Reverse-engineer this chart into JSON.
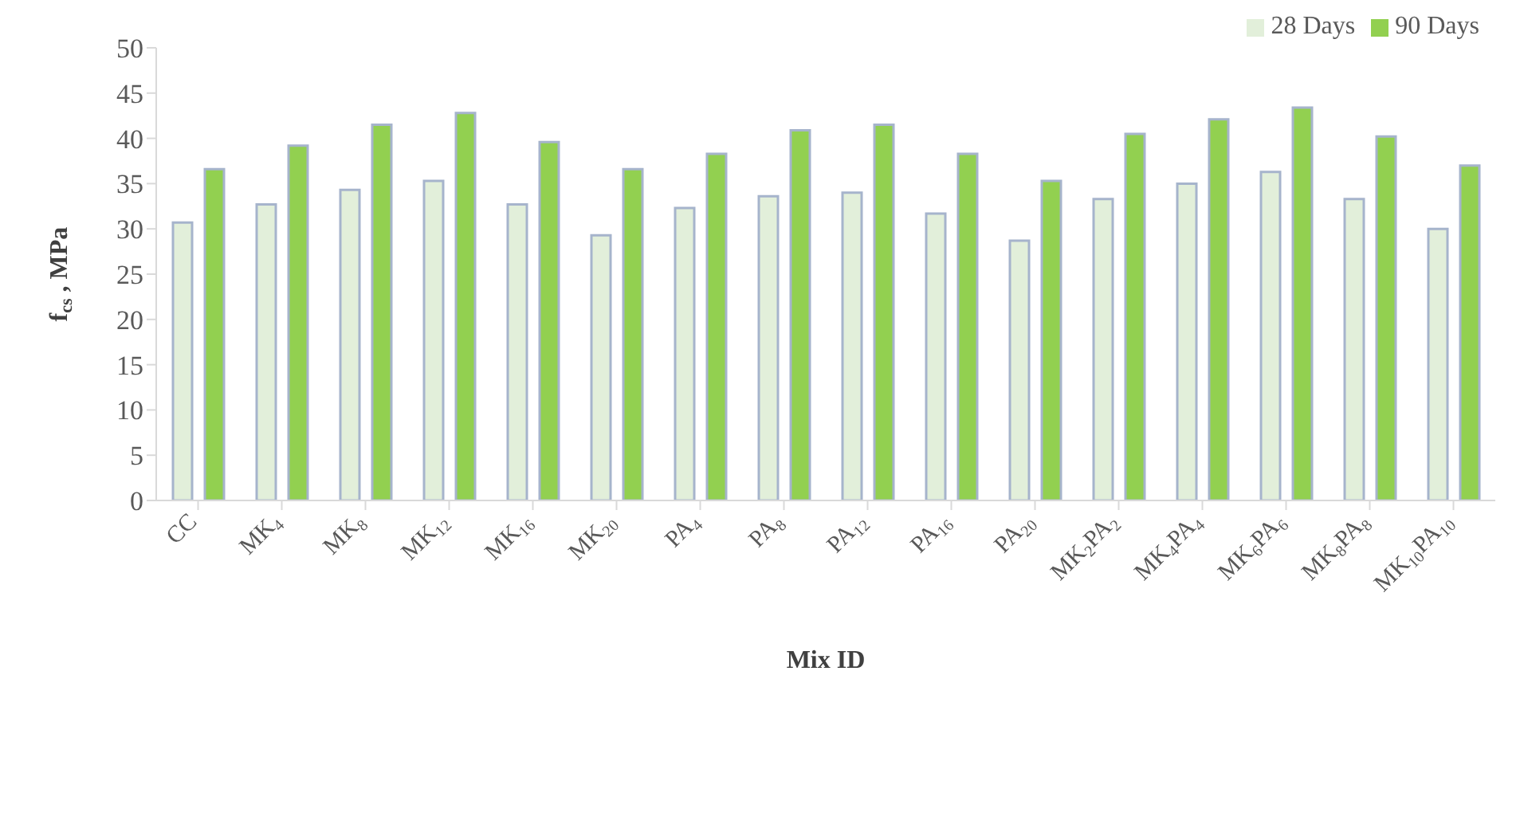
{
  "chart_data": {
    "type": "bar",
    "xlabel": "Mix ID",
    "ylabel": "f$_{cs}$ , MPa",
    "categories": [
      "CC",
      "MK$_{4}$",
      "MK$_{8}$",
      "MK$_{12}$",
      "MK$_{16}$",
      "MK$_{20}$",
      "PA$_{4}$",
      "PA$_{8}$",
      "PA$_{12}$",
      "PA$_{16}$",
      "PA$_{20}$",
      "MK$_{2}$PA$_{2}$",
      "MK$_{4}$PA$_{4}$",
      "MK$_{6}$PA$_{6}$",
      "MK$_{8}$PA$_{8}$",
      "MK$_{10}$PA$_{10}$"
    ],
    "series": [
      {
        "name": "28 Days",
        "color": "#e2efda",
        "values": [
          30.7,
          32.7,
          34.3,
          35.3,
          32.7,
          29.3,
          32.3,
          33.6,
          34.0,
          31.7,
          28.7,
          33.3,
          35.0,
          36.3,
          33.3,
          30.0
        ]
      },
      {
        "name": "90 Days",
        "color": "#92d050",
        "values": [
          36.6,
          39.2,
          41.5,
          42.8,
          39.6,
          36.6,
          38.3,
          40.9,
          41.5,
          38.3,
          35.3,
          40.5,
          42.1,
          43.4,
          40.2,
          37.0
        ]
      }
    ],
    "ylim": [
      0,
      50
    ],
    "yticks": [
      0,
      5,
      10,
      15,
      20,
      25,
      30,
      35,
      40,
      45,
      50
    ],
    "grid": false,
    "legend": "top right"
  }
}
